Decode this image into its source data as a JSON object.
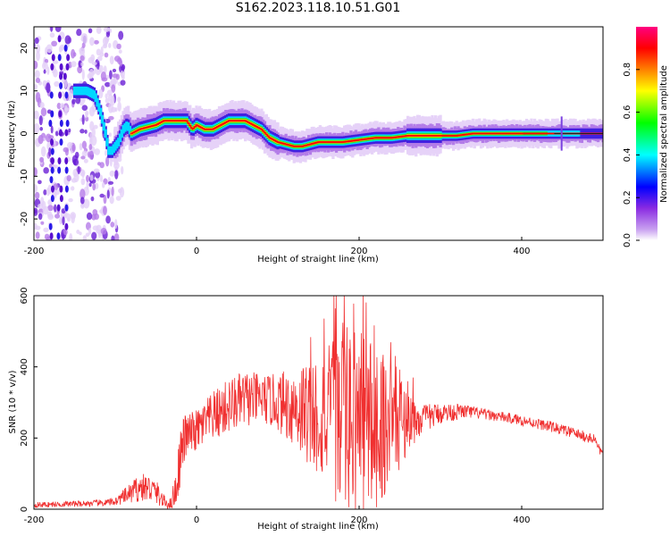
{
  "title": "S162.2023.118.10.51.G01",
  "chart_data": [
    {
      "type": "heatmap",
      "xlabel": "Height of straight line (km)",
      "ylabel": "Frequency (Hz)",
      "xlim": [
        -200,
        500
      ],
      "ylim": [
        -25,
        25
      ],
      "x_ticks": [
        -200,
        0,
        200,
        400
      ],
      "y_ticks": [
        -20,
        -10,
        0,
        10,
        20
      ],
      "colorbar": {
        "label": "Normalized spectral amplitude",
        "range": [
          0,
          1
        ],
        "ticks": [
          0.0,
          0.2,
          0.4,
          0.6,
          0.8
        ],
        "tick_labels": [
          "0.0",
          "0.2",
          "0.4",
          "0.6",
          "0.8"
        ],
        "colors": [
          "#ffffff",
          "#8a2be2",
          "#0000ff",
          "#00ffff",
          "#00ff00",
          "#ffff00",
          "#ff8000",
          "#ff0000",
          "#ff0080"
        ]
      },
      "ridge": {
        "x": [
          -145,
          -135,
          -125,
          -118,
          -112,
          -108,
          -104,
          -100,
          -96,
          -90,
          -85,
          -80,
          -70,
          -60,
          -50,
          -40,
          -30,
          -20,
          -12,
          -5,
          0,
          10,
          20,
          30,
          40,
          50,
          60,
          70,
          80,
          90,
          100,
          110,
          120,
          130,
          140,
          150,
          160,
          170,
          180,
          200,
          220,
          240,
          260,
          280,
          300,
          320,
          340,
          360,
          380,
          400,
          420,
          440,
          460,
          480,
          500
        ],
        "y": [
          10,
          10,
          9,
          5,
          0,
          -4,
          -4,
          -3,
          -2,
          1,
          2,
          0,
          1,
          1.5,
          2,
          3,
          3,
          3,
          3,
          1,
          2,
          1,
          1,
          2,
          3,
          3,
          3,
          2,
          1,
          -1,
          -2,
          -2.5,
          -3,
          -3,
          -2.5,
          -2,
          -2,
          -2,
          -2,
          -1.5,
          -1,
          -1,
          -0.5,
          -0.5,
          -0.5,
          -0.5,
          0,
          0,
          0,
          0,
          0,
          0,
          0,
          0,
          0
        ]
      }
    },
    {
      "type": "line",
      "xlabel": "Height of straight line (km)",
      "ylabel": "SNR (10 * v/v)",
      "xlim": [
        -200,
        500
      ],
      "ylim": [
        0,
        600
      ],
      "x_ticks": [
        -200,
        0,
        200,
        400
      ],
      "y_ticks": [
        0,
        200,
        400,
        600
      ],
      "color": "#f03030",
      "envelope": {
        "x": [
          -200,
          -150,
          -110,
          -100,
          -85,
          -70,
          -60,
          -50,
          -40,
          -32,
          -25,
          -20,
          -15,
          -10,
          0,
          20,
          40,
          60,
          80,
          100,
          120,
          140,
          160,
          180,
          200,
          220,
          240,
          260,
          280,
          300,
          330,
          360,
          400,
          440,
          470,
          490,
          500
        ],
        "base": [
          12,
          15,
          18,
          22,
          40,
          60,
          60,
          50,
          20,
          15,
          60,
          150,
          200,
          210,
          220,
          260,
          290,
          310,
          310,
          300,
          290,
          270,
          260,
          250,
          245,
          240,
          245,
          250,
          255,
          270,
          275,
          265,
          250,
          230,
          210,
          195,
          150
        ],
        "noise": [
          8,
          8,
          10,
          12,
          25,
          40,
          40,
          35,
          20,
          15,
          60,
          80,
          70,
          60,
          60,
          70,
          80,
          80,
          70,
          80,
          120,
          160,
          200,
          260,
          280,
          240,
          180,
          90,
          40,
          30,
          20,
          15,
          15,
          15,
          15,
          15,
          15
        ]
      }
    }
  ]
}
